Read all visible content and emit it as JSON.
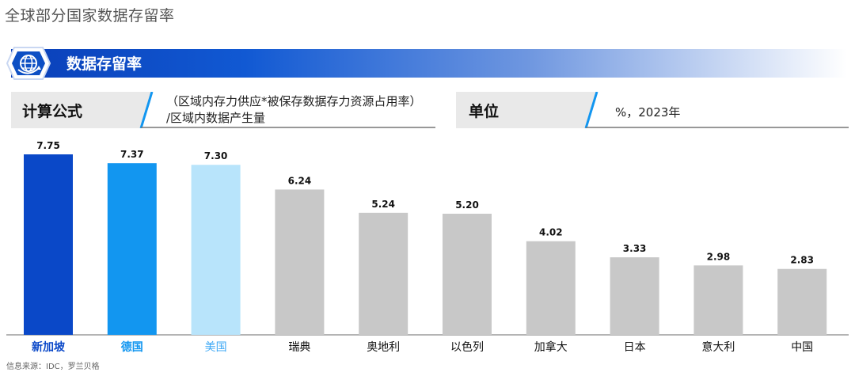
{
  "page": {
    "title": "全球部分国家数据存留率",
    "banner_title": "数据存留率",
    "formula_label": "计算公式",
    "formula_line1": "（区域内存力供应*被保存数据存力资源占用率）",
    "formula_line2": "/区域内数据产生量",
    "unit_label": "单位",
    "unit_text": "%，2023年",
    "source": "信息来源：IDC，罗兰贝格"
  },
  "colors": {
    "banner_blue": "#0a3fb8",
    "bar_singapore": "#0a48c8",
    "bar_germany": "#1296f0",
    "bar_usa": "#b8e4fb",
    "bar_other": "#c8c8c8",
    "label_highlight": "#0a48c8",
    "label_germany": "#1296f0",
    "label_usa": "#3fa9f5"
  },
  "chart_data": {
    "type": "bar",
    "categories": [
      "新加坡",
      "德国",
      "美国",
      "瑞典",
      "奥地利",
      "以色列",
      "加拿大",
      "日本",
      "意大利",
      "中国"
    ],
    "values": [
      7.75,
      7.37,
      7.3,
      6.24,
      5.24,
      5.2,
      4.02,
      3.33,
      2.98,
      2.83
    ],
    "value_labels": [
      "7.75",
      "7.37",
      "7.30",
      "6.24",
      "5.24",
      "5.20",
      "4.02",
      "3.33",
      "2.98",
      "2.83"
    ],
    "ylim": [
      0,
      7.75
    ],
    "grid": false,
    "legend": "none"
  }
}
